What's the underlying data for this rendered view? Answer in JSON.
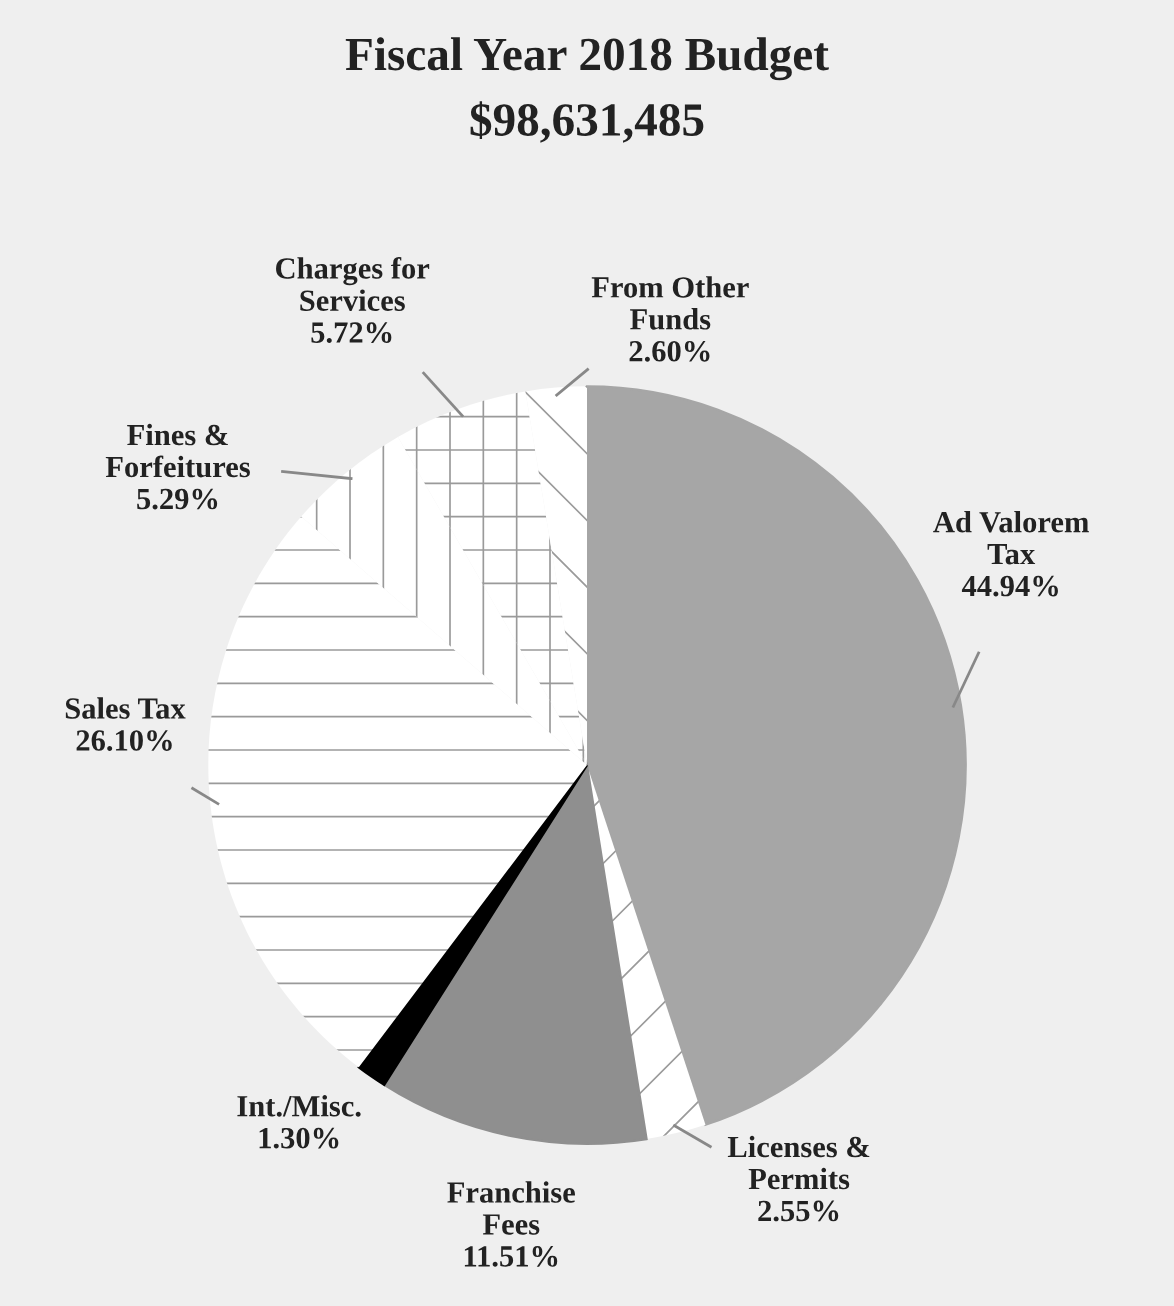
{
  "chart_data": {
    "type": "pie",
    "title": "Fiscal Year 2018 Budget",
    "subtitle": "$98,631,485",
    "categories": [
      "Ad Valorem\nTax",
      "Licenses &\nPermits",
      "Franchise\nFees",
      "Int./Misc.",
      "Sales Tax",
      "Fines &\nForfeitures",
      "Charges for\nServices",
      "From Other\nFunds"
    ],
    "values": [
      44.94,
      2.55,
      11.51,
      1.3,
      26.1,
      5.29,
      5.72,
      2.6
    ],
    "value_labels": [
      "44.94%",
      "2.55%",
      "11.51%",
      "1.30%",
      "26.10%",
      "5.29%",
      "5.72%",
      "2.60%"
    ],
    "colors": [
      "#a6a6a6",
      "#ffffff",
      "#8f8f8f",
      "#000000",
      "#ffffff",
      "#ffffff",
      "#ffffff",
      "#ffffff"
    ],
    "legend": false
  }
}
